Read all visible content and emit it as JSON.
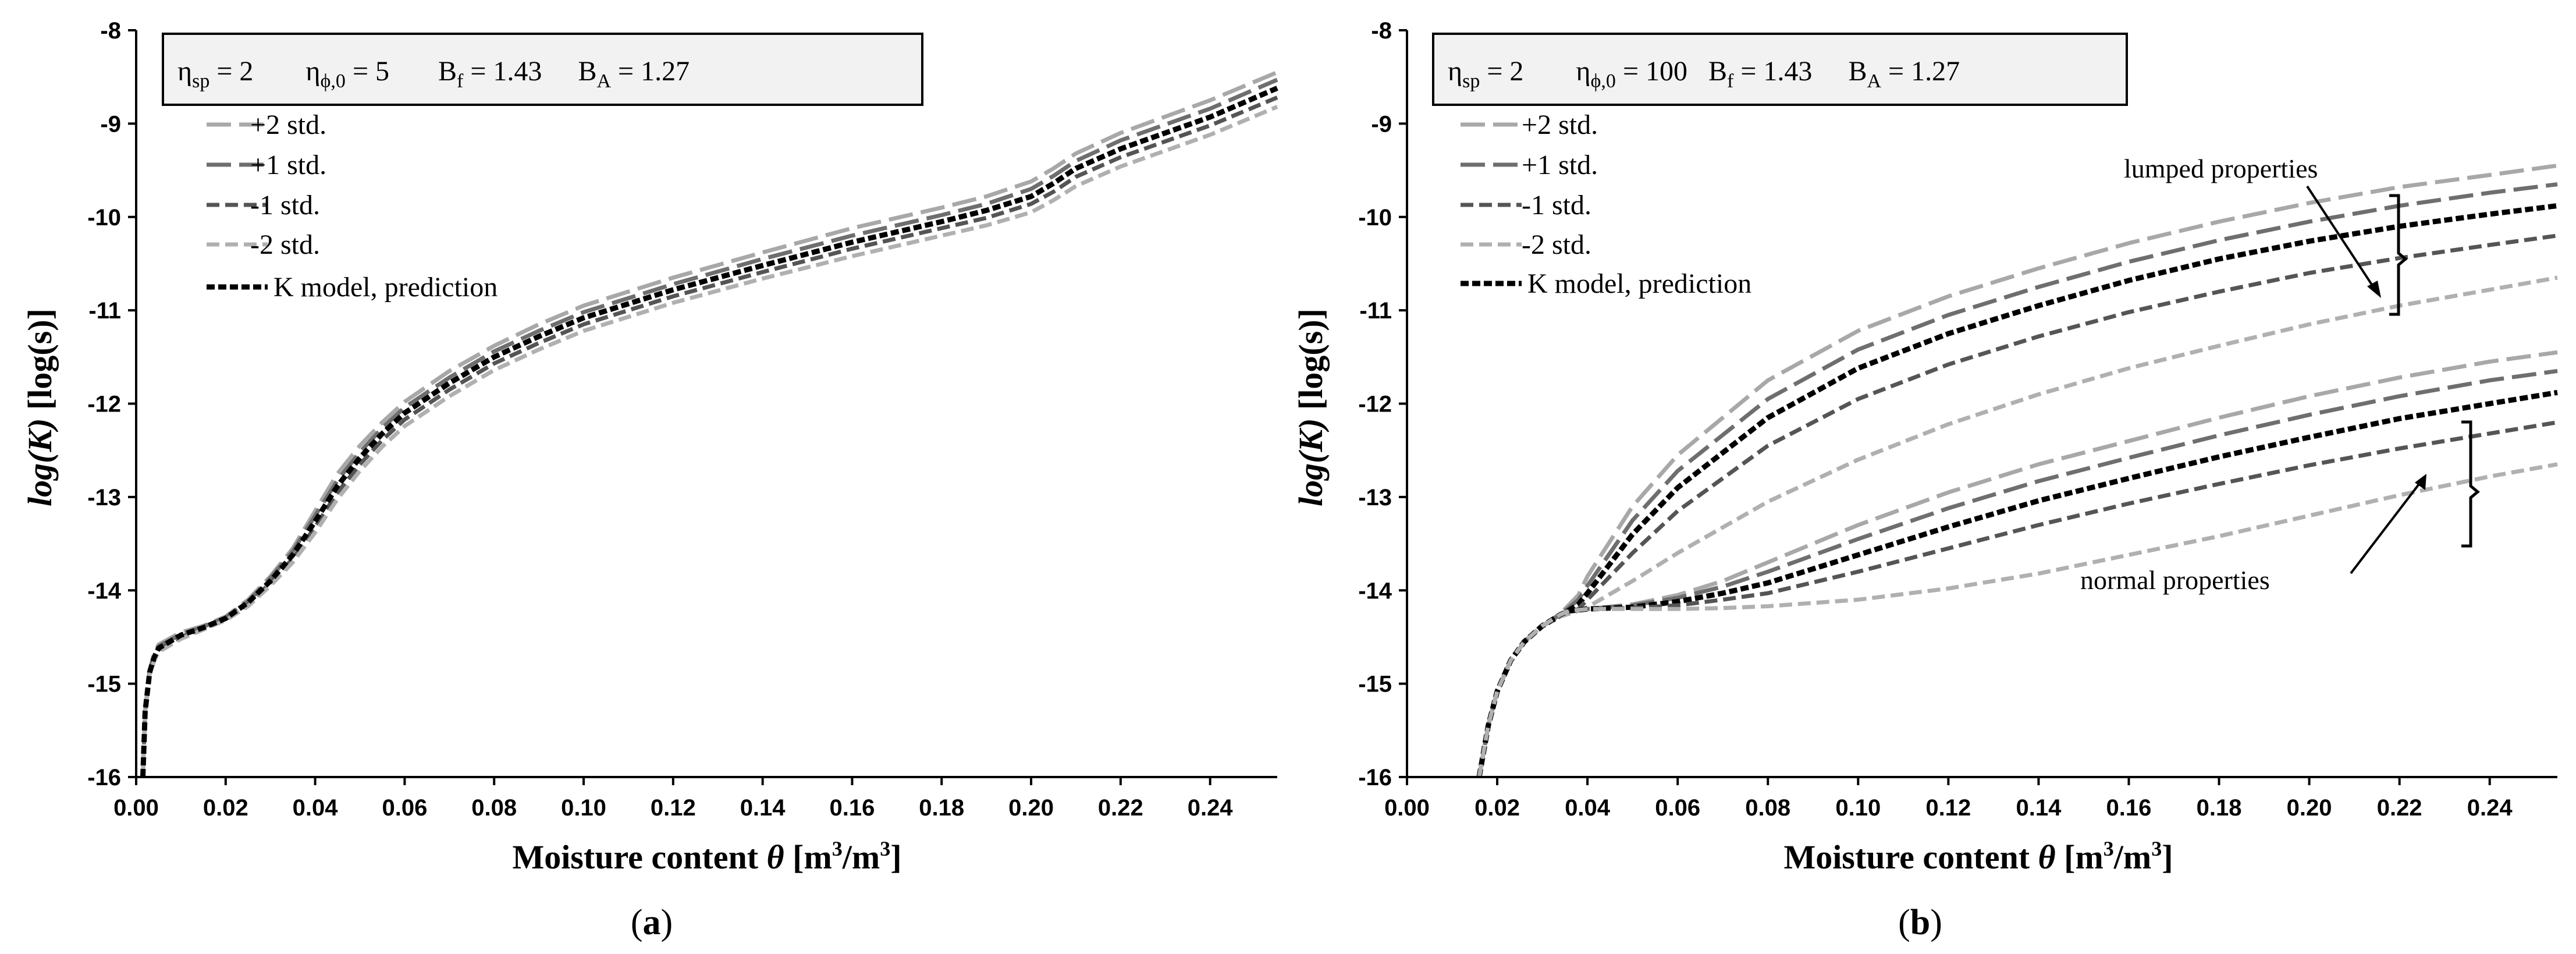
{
  "chart_data": [
    {
      "type": "line",
      "panel_label": "a",
      "xlabel": "Moisture content θ [m³/m³]",
      "xlabel_main": "Moisture content ",
      "xlabel_theta": "θ",
      "xlabel_unit_open": " [m",
      "xlabel_unit_mid": "/m",
      "xlabel_unit_close": "]",
      "xlabel_sup": "3",
      "ylabel": "log(K) [log(s)]",
      "ylabel_main": "log(K)",
      "ylabel_unit": " [log(s)]",
      "xlim": [
        0.0,
        0.255
      ],
      "ylim": [
        -16,
        -8
      ],
      "xticks": [
        "0.00",
        "0.02",
        "0.04",
        "0.06",
        "0.08",
        "0.10",
        "0.12",
        "0.14",
        "0.16",
        "0.18",
        "0.20",
        "0.22",
        "0.24"
      ],
      "yticks": [
        "-8",
        "-9",
        "-10",
        "-11",
        "-12",
        "-13",
        "-14",
        "-15",
        "-16"
      ],
      "params": {
        "eta_sp": "η",
        "eta_sp_sub": "sp",
        "eta_sp_val": " = 2",
        "eta_phi": "η",
        "eta_phi_sub": "ϕ,0",
        "eta_phi_val": " = 5",
        "bf": "B",
        "bf_sub": "f",
        "bf_val": " = 1.43",
        "ba": "B",
        "ba_sub": "A",
        "ba_val": " = 1.27"
      },
      "legend": [
        "+2 std.",
        "+1 std.",
        "-1 std.",
        "-2 std.",
        "K model, prediction"
      ],
      "series": [
        {
          "name": "+2 std.",
          "color": "#a8a8a8",
          "x": [
            0.0015,
            0.002,
            0.003,
            0.004,
            0.005,
            0.01,
            0.015,
            0.02,
            0.025,
            0.03,
            0.035,
            0.04,
            0.045,
            0.05,
            0.055,
            0.06,
            0.07,
            0.08,
            0.09,
            0.1,
            0.12,
            0.14,
            0.16,
            0.18,
            0.19,
            0.2,
            0.205,
            0.21,
            0.22,
            0.24,
            0.255
          ],
          "values": [
            -16,
            -15.3,
            -14.85,
            -14.68,
            -14.58,
            -14.45,
            -14.38,
            -14.28,
            -14.1,
            -13.85,
            -13.55,
            -13.15,
            -12.75,
            -12.45,
            -12.2,
            -11.98,
            -11.65,
            -11.38,
            -11.15,
            -10.95,
            -10.65,
            -10.38,
            -10.12,
            -9.9,
            -9.78,
            -9.62,
            -9.48,
            -9.32,
            -9.1,
            -8.75,
            -8.45
          ]
        },
        {
          "name": "+1 std.",
          "color": "#6e6e6e",
          "x": [
            0.0015,
            0.002,
            0.003,
            0.004,
            0.005,
            0.01,
            0.015,
            0.02,
            0.025,
            0.03,
            0.035,
            0.04,
            0.045,
            0.05,
            0.055,
            0.06,
            0.07,
            0.08,
            0.09,
            0.1,
            0.12,
            0.14,
            0.16,
            0.18,
            0.19,
            0.2,
            0.205,
            0.21,
            0.22,
            0.24,
            0.255
          ],
          "values": [
            -16,
            -15.3,
            -14.87,
            -14.7,
            -14.6,
            -14.47,
            -14.39,
            -14.29,
            -14.12,
            -13.87,
            -13.58,
            -13.2,
            -12.82,
            -12.52,
            -12.26,
            -12.04,
            -11.72,
            -11.44,
            -11.22,
            -11.02,
            -10.72,
            -10.45,
            -10.2,
            -9.98,
            -9.86,
            -9.7,
            -9.56,
            -9.4,
            -9.18,
            -8.84,
            -8.53
          ]
        },
        {
          "name": "-1 std.",
          "color": "#555555",
          "x": [
            0.0015,
            0.002,
            0.003,
            0.004,
            0.005,
            0.01,
            0.015,
            0.02,
            0.025,
            0.03,
            0.035,
            0.04,
            0.045,
            0.05,
            0.055,
            0.06,
            0.07,
            0.08,
            0.09,
            0.1,
            0.12,
            0.14,
            0.16,
            0.18,
            0.19,
            0.2,
            0.205,
            0.21,
            0.22,
            0.24,
            0.255
          ],
          "values": [
            -16,
            -15.3,
            -14.89,
            -14.74,
            -14.64,
            -14.5,
            -14.41,
            -14.31,
            -14.15,
            -13.92,
            -13.66,
            -13.32,
            -12.95,
            -12.65,
            -12.39,
            -12.17,
            -11.85,
            -11.57,
            -11.35,
            -11.15,
            -10.85,
            -10.59,
            -10.34,
            -10.12,
            -10.01,
            -9.86,
            -9.73,
            -9.57,
            -9.36,
            -9.02,
            -8.72
          ]
        },
        {
          "name": "-2 std.",
          "color": "#b0b0b0",
          "x": [
            0.0015,
            0.002,
            0.003,
            0.004,
            0.005,
            0.01,
            0.015,
            0.02,
            0.025,
            0.03,
            0.035,
            0.04,
            0.045,
            0.05,
            0.055,
            0.06,
            0.07,
            0.08,
            0.09,
            0.1,
            0.12,
            0.14,
            0.16,
            0.18,
            0.19,
            0.2,
            0.205,
            0.21,
            0.22,
            0.24,
            0.255
          ],
          "values": [
            -16,
            -15.3,
            -14.9,
            -14.76,
            -14.66,
            -14.52,
            -14.42,
            -14.32,
            -14.17,
            -13.95,
            -13.7,
            -13.38,
            -13.02,
            -12.72,
            -12.46,
            -12.24,
            -11.92,
            -11.64,
            -11.42,
            -11.22,
            -10.92,
            -10.66,
            -10.42,
            -10.2,
            -10.09,
            -9.95,
            -9.82,
            -9.67,
            -9.46,
            -9.12,
            -8.82
          ]
        },
        {
          "name": "K model, prediction",
          "color": "#000000",
          "x": [
            0.0015,
            0.002,
            0.003,
            0.004,
            0.005,
            0.01,
            0.015,
            0.02,
            0.025,
            0.03,
            0.035,
            0.04,
            0.045,
            0.05,
            0.055,
            0.06,
            0.07,
            0.08,
            0.09,
            0.1,
            0.12,
            0.14,
            0.16,
            0.18,
            0.19,
            0.2,
            0.205,
            0.21,
            0.22,
            0.24,
            0.255
          ],
          "values": [
            -16,
            -15.3,
            -14.88,
            -14.72,
            -14.62,
            -14.48,
            -14.4,
            -14.3,
            -14.13,
            -13.9,
            -13.62,
            -13.26,
            -12.88,
            -12.58,
            -12.32,
            -12.1,
            -11.78,
            -11.5,
            -11.28,
            -11.08,
            -10.78,
            -10.52,
            -10.27,
            -10.05,
            -9.93,
            -9.78,
            -9.64,
            -9.48,
            -9.27,
            -8.93,
            -8.62
          ]
        }
      ]
    },
    {
      "type": "line",
      "panel_label": "b",
      "xlabel": "Moisture content θ [m³/m³]",
      "xlabel_main": "Moisture content ",
      "xlabel_theta": "θ",
      "xlabel_unit_open": " [m",
      "xlabel_unit_mid": "/m",
      "xlabel_unit_close": "]",
      "xlabel_sup": "3",
      "ylabel": "log(K) [log(s)]",
      "ylabel_main": "log(K)",
      "ylabel_unit": " [log(s)]",
      "xlim": [
        0.0,
        0.255
      ],
      "ylim": [
        -16,
        -8
      ],
      "xticks": [
        "0.00",
        "0.02",
        "0.04",
        "0.06",
        "0.08",
        "0.10",
        "0.12",
        "0.14",
        "0.16",
        "0.18",
        "0.20",
        "0.22",
        "0.24"
      ],
      "yticks": [
        "-8",
        "-9",
        "-10",
        "-11",
        "-12",
        "-13",
        "-14",
        "-15",
        "-16"
      ],
      "params": {
        "eta_sp": "η",
        "eta_sp_sub": "sp",
        "eta_sp_val": " = 2",
        "eta_phi": "η",
        "eta_phi_sub": "ϕ,0",
        "eta_phi_val": " = 100",
        "bf": "B",
        "bf_sub": "f",
        "bf_val": " = 1.43",
        "ba": "B",
        "ba_sub": "A",
        "ba_val": " = 1.27"
      },
      "legend": [
        "+2 std.",
        "+1 std.",
        "-1 std.",
        "-2 std.",
        "K model, prediction"
      ],
      "annotations": {
        "lumped": "lumped properties",
        "normal": "normal properties"
      },
      "series": [
        {
          "name": "+2 std. (lumped)",
          "color": "#a8a8a8",
          "x": [
            0.016,
            0.018,
            0.02,
            0.023,
            0.026,
            0.03,
            0.034,
            0.038,
            0.04,
            0.05,
            0.06,
            0.08,
            0.1,
            0.12,
            0.14,
            0.16,
            0.18,
            0.2,
            0.22,
            0.24,
            0.255
          ],
          "values": [
            -16,
            -15.45,
            -15.08,
            -14.75,
            -14.55,
            -14.38,
            -14.25,
            -14.05,
            -13.85,
            -13.1,
            -12.55,
            -11.75,
            -11.22,
            -10.85,
            -10.55,
            -10.28,
            -10.05,
            -9.85,
            -9.68,
            -9.55,
            -9.45
          ]
        },
        {
          "name": "+1 std. (lumped)",
          "color": "#6e6e6e",
          "x": [
            0.016,
            0.018,
            0.02,
            0.023,
            0.026,
            0.03,
            0.034,
            0.038,
            0.04,
            0.05,
            0.06,
            0.08,
            0.1,
            0.12,
            0.14,
            0.16,
            0.18,
            0.2,
            0.22,
            0.24,
            0.255
          ],
          "values": [
            -16,
            -15.45,
            -15.08,
            -14.75,
            -14.55,
            -14.38,
            -14.26,
            -14.1,
            -13.95,
            -13.25,
            -12.72,
            -11.95,
            -11.42,
            -11.05,
            -10.75,
            -10.48,
            -10.25,
            -10.05,
            -9.88,
            -9.74,
            -9.65
          ]
        },
        {
          "name": "K model (lumped)",
          "color": "#000000",
          "x": [
            0.016,
            0.018,
            0.02,
            0.023,
            0.026,
            0.03,
            0.034,
            0.038,
            0.04,
            0.05,
            0.06,
            0.08,
            0.1,
            0.12,
            0.14,
            0.16,
            0.18,
            0.2,
            0.22,
            0.24,
            0.255
          ],
          "values": [
            -16,
            -15.45,
            -15.08,
            -14.75,
            -14.55,
            -14.38,
            -14.27,
            -14.15,
            -14.03,
            -13.4,
            -12.9,
            -12.15,
            -11.62,
            -11.25,
            -10.95,
            -10.68,
            -10.45,
            -10.26,
            -10.1,
            -9.97,
            -9.88
          ]
        },
        {
          "name": "-1 std. (lumped)",
          "color": "#555555",
          "x": [
            0.016,
            0.018,
            0.02,
            0.023,
            0.026,
            0.03,
            0.034,
            0.038,
            0.04,
            0.05,
            0.06,
            0.08,
            0.1,
            0.12,
            0.14,
            0.16,
            0.18,
            0.2,
            0.22,
            0.24,
            0.255
          ],
          "values": [
            -16,
            -15.45,
            -15.08,
            -14.75,
            -14.55,
            -14.38,
            -14.27,
            -14.2,
            -14.1,
            -13.6,
            -13.15,
            -12.45,
            -11.95,
            -11.58,
            -11.28,
            -11.02,
            -10.8,
            -10.6,
            -10.44,
            -10.3,
            -10.2
          ]
        },
        {
          "name": "-2 std. (lumped)",
          "color": "#b0b0b0",
          "x": [
            0.016,
            0.018,
            0.02,
            0.023,
            0.026,
            0.03,
            0.034,
            0.038,
            0.04,
            0.05,
            0.06,
            0.08,
            0.1,
            0.12,
            0.14,
            0.16,
            0.18,
            0.2,
            0.22,
            0.24,
            0.255
          ],
          "values": [
            -16,
            -15.45,
            -15.08,
            -14.75,
            -14.55,
            -14.38,
            -14.28,
            -14.22,
            -14.18,
            -13.9,
            -13.6,
            -13.05,
            -12.6,
            -12.22,
            -11.9,
            -11.62,
            -11.38,
            -11.15,
            -10.95,
            -10.78,
            -10.65
          ]
        },
        {
          "name": "+2 std. (normal)",
          "color": "#a8a8a8",
          "x": [
            0.016,
            0.018,
            0.02,
            0.023,
            0.026,
            0.03,
            0.034,
            0.036,
            0.04,
            0.05,
            0.06,
            0.07,
            0.08,
            0.1,
            0.12,
            0.14,
            0.16,
            0.18,
            0.2,
            0.22,
            0.24,
            0.255
          ],
          "values": [
            -16,
            -15.45,
            -15.08,
            -14.75,
            -14.55,
            -14.38,
            -14.26,
            -14.22,
            -14.2,
            -14.15,
            -14.05,
            -13.9,
            -13.7,
            -13.3,
            -12.95,
            -12.65,
            -12.4,
            -12.15,
            -11.92,
            -11.72,
            -11.55,
            -11.45
          ]
        },
        {
          "name": "+1 std. (normal)",
          "color": "#6e6e6e",
          "x": [
            0.016,
            0.018,
            0.02,
            0.023,
            0.026,
            0.03,
            0.034,
            0.036,
            0.04,
            0.05,
            0.06,
            0.07,
            0.08,
            0.1,
            0.12,
            0.14,
            0.16,
            0.18,
            0.2,
            0.22,
            0.24,
            0.255
          ],
          "values": [
            -16,
            -15.45,
            -15.08,
            -14.75,
            -14.55,
            -14.38,
            -14.26,
            -14.22,
            -14.2,
            -14.16,
            -14.08,
            -13.96,
            -13.8,
            -13.45,
            -13.12,
            -12.83,
            -12.58,
            -12.34,
            -12.12,
            -11.92,
            -11.75,
            -11.65
          ]
        },
        {
          "name": "K model (normal)",
          "color": "#000000",
          "x": [
            0.016,
            0.018,
            0.02,
            0.023,
            0.026,
            0.03,
            0.034,
            0.036,
            0.04,
            0.05,
            0.06,
            0.07,
            0.08,
            0.1,
            0.12,
            0.14,
            0.16,
            0.18,
            0.2,
            0.22,
            0.24,
            0.255
          ],
          "values": [
            -16,
            -15.45,
            -15.08,
            -14.75,
            -14.55,
            -14.38,
            -14.26,
            -14.22,
            -14.2,
            -14.18,
            -14.12,
            -14.03,
            -13.92,
            -13.62,
            -13.32,
            -13.04,
            -12.8,
            -12.57,
            -12.36,
            -12.16,
            -12.0,
            -11.88
          ]
        },
        {
          "name": "-1 std. (normal)",
          "color": "#555555",
          "x": [
            0.016,
            0.018,
            0.02,
            0.023,
            0.026,
            0.03,
            0.034,
            0.036,
            0.04,
            0.05,
            0.06,
            0.07,
            0.08,
            0.1,
            0.12,
            0.14,
            0.16,
            0.18,
            0.2,
            0.22,
            0.24,
            0.255
          ],
          "values": [
            -16,
            -15.45,
            -15.08,
            -14.75,
            -14.55,
            -14.38,
            -14.26,
            -14.22,
            -14.2,
            -14.19,
            -14.16,
            -14.1,
            -14.03,
            -13.8,
            -13.55,
            -13.3,
            -13.07,
            -12.86,
            -12.66,
            -12.48,
            -12.32,
            -12.2
          ]
        },
        {
          "name": "-2 std. (normal)",
          "color": "#b0b0b0",
          "x": [
            0.016,
            0.018,
            0.02,
            0.023,
            0.026,
            0.03,
            0.034,
            0.036,
            0.04,
            0.05,
            0.06,
            0.07,
            0.08,
            0.1,
            0.12,
            0.14,
            0.16,
            0.18,
            0.2,
            0.22,
            0.24,
            0.255
          ],
          "values": [
            -16,
            -15.45,
            -15.08,
            -14.75,
            -14.55,
            -14.38,
            -14.26,
            -14.22,
            -14.2,
            -14.2,
            -14.2,
            -14.19,
            -14.17,
            -14.1,
            -13.98,
            -13.82,
            -13.62,
            -13.42,
            -13.2,
            -12.98,
            -12.78,
            -12.65
          ]
        }
      ]
    }
  ]
}
